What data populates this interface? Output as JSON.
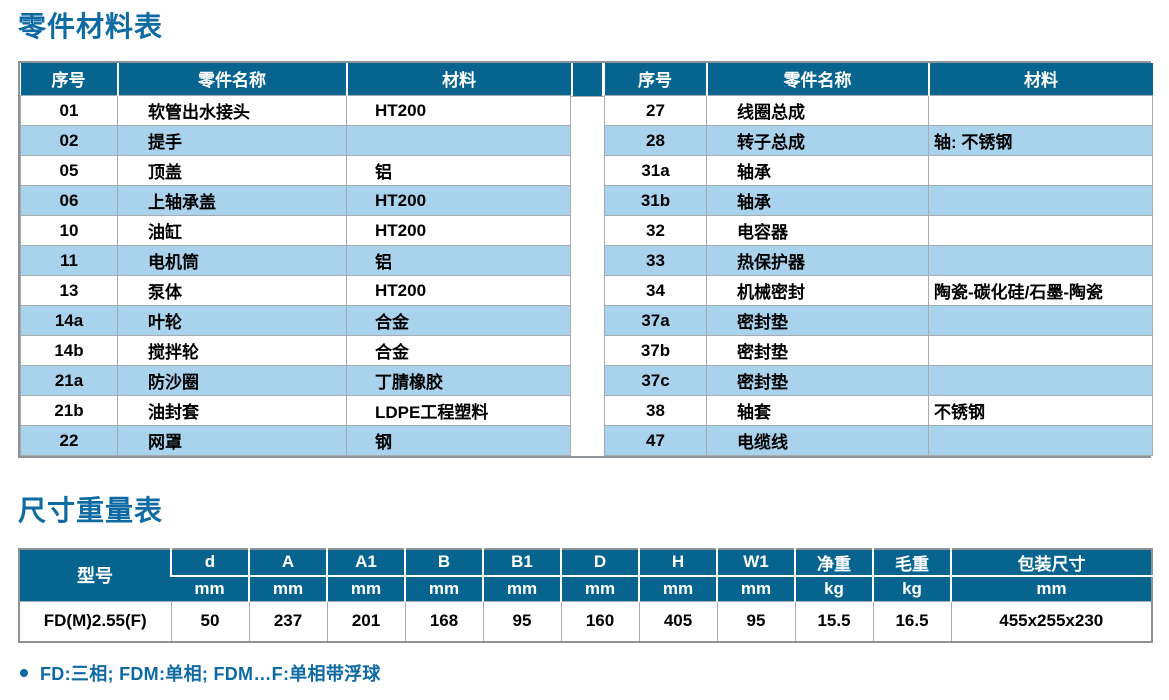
{
  "colors": {
    "header_bg": "#06648f",
    "row_alt": "#a9d3ed",
    "title_blue": "#0e6aa3",
    "grid_gray": "#a5abae",
    "outer_gray": "#8d9396"
  },
  "parts_section": {
    "title": "零件材料表",
    "headers": [
      "序号",
      "零件名称",
      "材料"
    ],
    "left_rows": [
      [
        "01",
        "软管出水接头",
        "HT200"
      ],
      [
        "02",
        "提手",
        ""
      ],
      [
        "05",
        "顶盖",
        "铝"
      ],
      [
        "06",
        "上轴承盖",
        "HT200"
      ],
      [
        "10",
        "油缸",
        "HT200"
      ],
      [
        "11",
        "电机筒",
        "铝"
      ],
      [
        "13",
        "泵体",
        "HT200"
      ],
      [
        "14a",
        "叶轮",
        "合金"
      ],
      [
        "14b",
        "搅拌轮",
        "合金"
      ],
      [
        "21a",
        "防沙圈",
        "丁腈橡胶"
      ],
      [
        "21b",
        "油封套",
        "LDPE工程塑料"
      ],
      [
        "22",
        "网罩",
        "钢"
      ]
    ],
    "right_rows": [
      [
        "27",
        "线圈总成",
        ""
      ],
      [
        "28",
        "转子总成",
        "轴: 不锈钢"
      ],
      [
        "31a",
        "轴承",
        ""
      ],
      [
        "31b",
        "轴承",
        ""
      ],
      [
        "32",
        "电容器",
        ""
      ],
      [
        "33",
        "热保护器",
        ""
      ],
      [
        "34",
        "机械密封",
        "陶瓷-碳化硅/石墨-陶瓷"
      ],
      [
        "37a",
        "密封垫",
        ""
      ],
      [
        "37b",
        "密封垫",
        ""
      ],
      [
        "37c",
        "密封垫",
        ""
      ],
      [
        "38",
        "轴套",
        "不锈钢"
      ],
      [
        "47",
        "电缆线",
        ""
      ]
    ]
  },
  "dims_section": {
    "title": "尺寸重量表",
    "model_header": "型号",
    "columns": [
      {
        "label": "d",
        "unit": "mm"
      },
      {
        "label": "A",
        "unit": "mm"
      },
      {
        "label": "A1",
        "unit": "mm"
      },
      {
        "label": "B",
        "unit": "mm"
      },
      {
        "label": "B1",
        "unit": "mm"
      },
      {
        "label": "D",
        "unit": "mm"
      },
      {
        "label": "H",
        "unit": "mm"
      },
      {
        "label": "W1",
        "unit": "mm"
      },
      {
        "label": "净重",
        "unit": "kg"
      },
      {
        "label": "毛重",
        "unit": "kg"
      },
      {
        "label": "包装尺寸",
        "unit": "mm"
      }
    ],
    "rows": [
      {
        "model": "FD(M)2.55(F)",
        "values": [
          "50",
          "237",
          "201",
          "168",
          "95",
          "160",
          "405",
          "95",
          "15.5",
          "16.5",
          "455x255x230"
        ]
      }
    ],
    "footnote": "FD:三相; FDM:单相; FDM…F:单相带浮球"
  }
}
